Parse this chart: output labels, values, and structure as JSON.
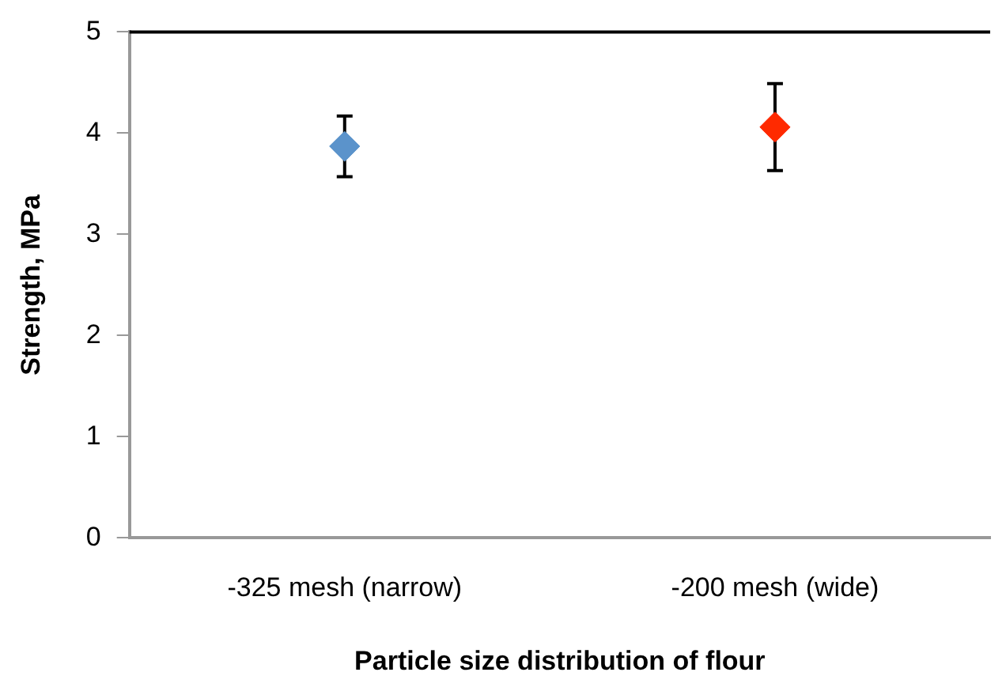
{
  "chart_data": {
    "type": "scatter",
    "xlabel": "Particle size distribution of flour",
    "ylabel": "Strength, MPa",
    "categories": [
      "-325 mesh (narrow)",
      "-200 mesh (wide)"
    ],
    "values": [
      3.87,
      4.06
    ],
    "colors": [
      "#5b93cb",
      "#ff2a00"
    ],
    "errors": [
      0.3,
      0.43
    ],
    "marker": "diamond",
    "ylim": [
      0,
      5
    ],
    "yticks": [
      0,
      1,
      2,
      3,
      4,
      5
    ],
    "grid": false,
    "legend": false
  }
}
